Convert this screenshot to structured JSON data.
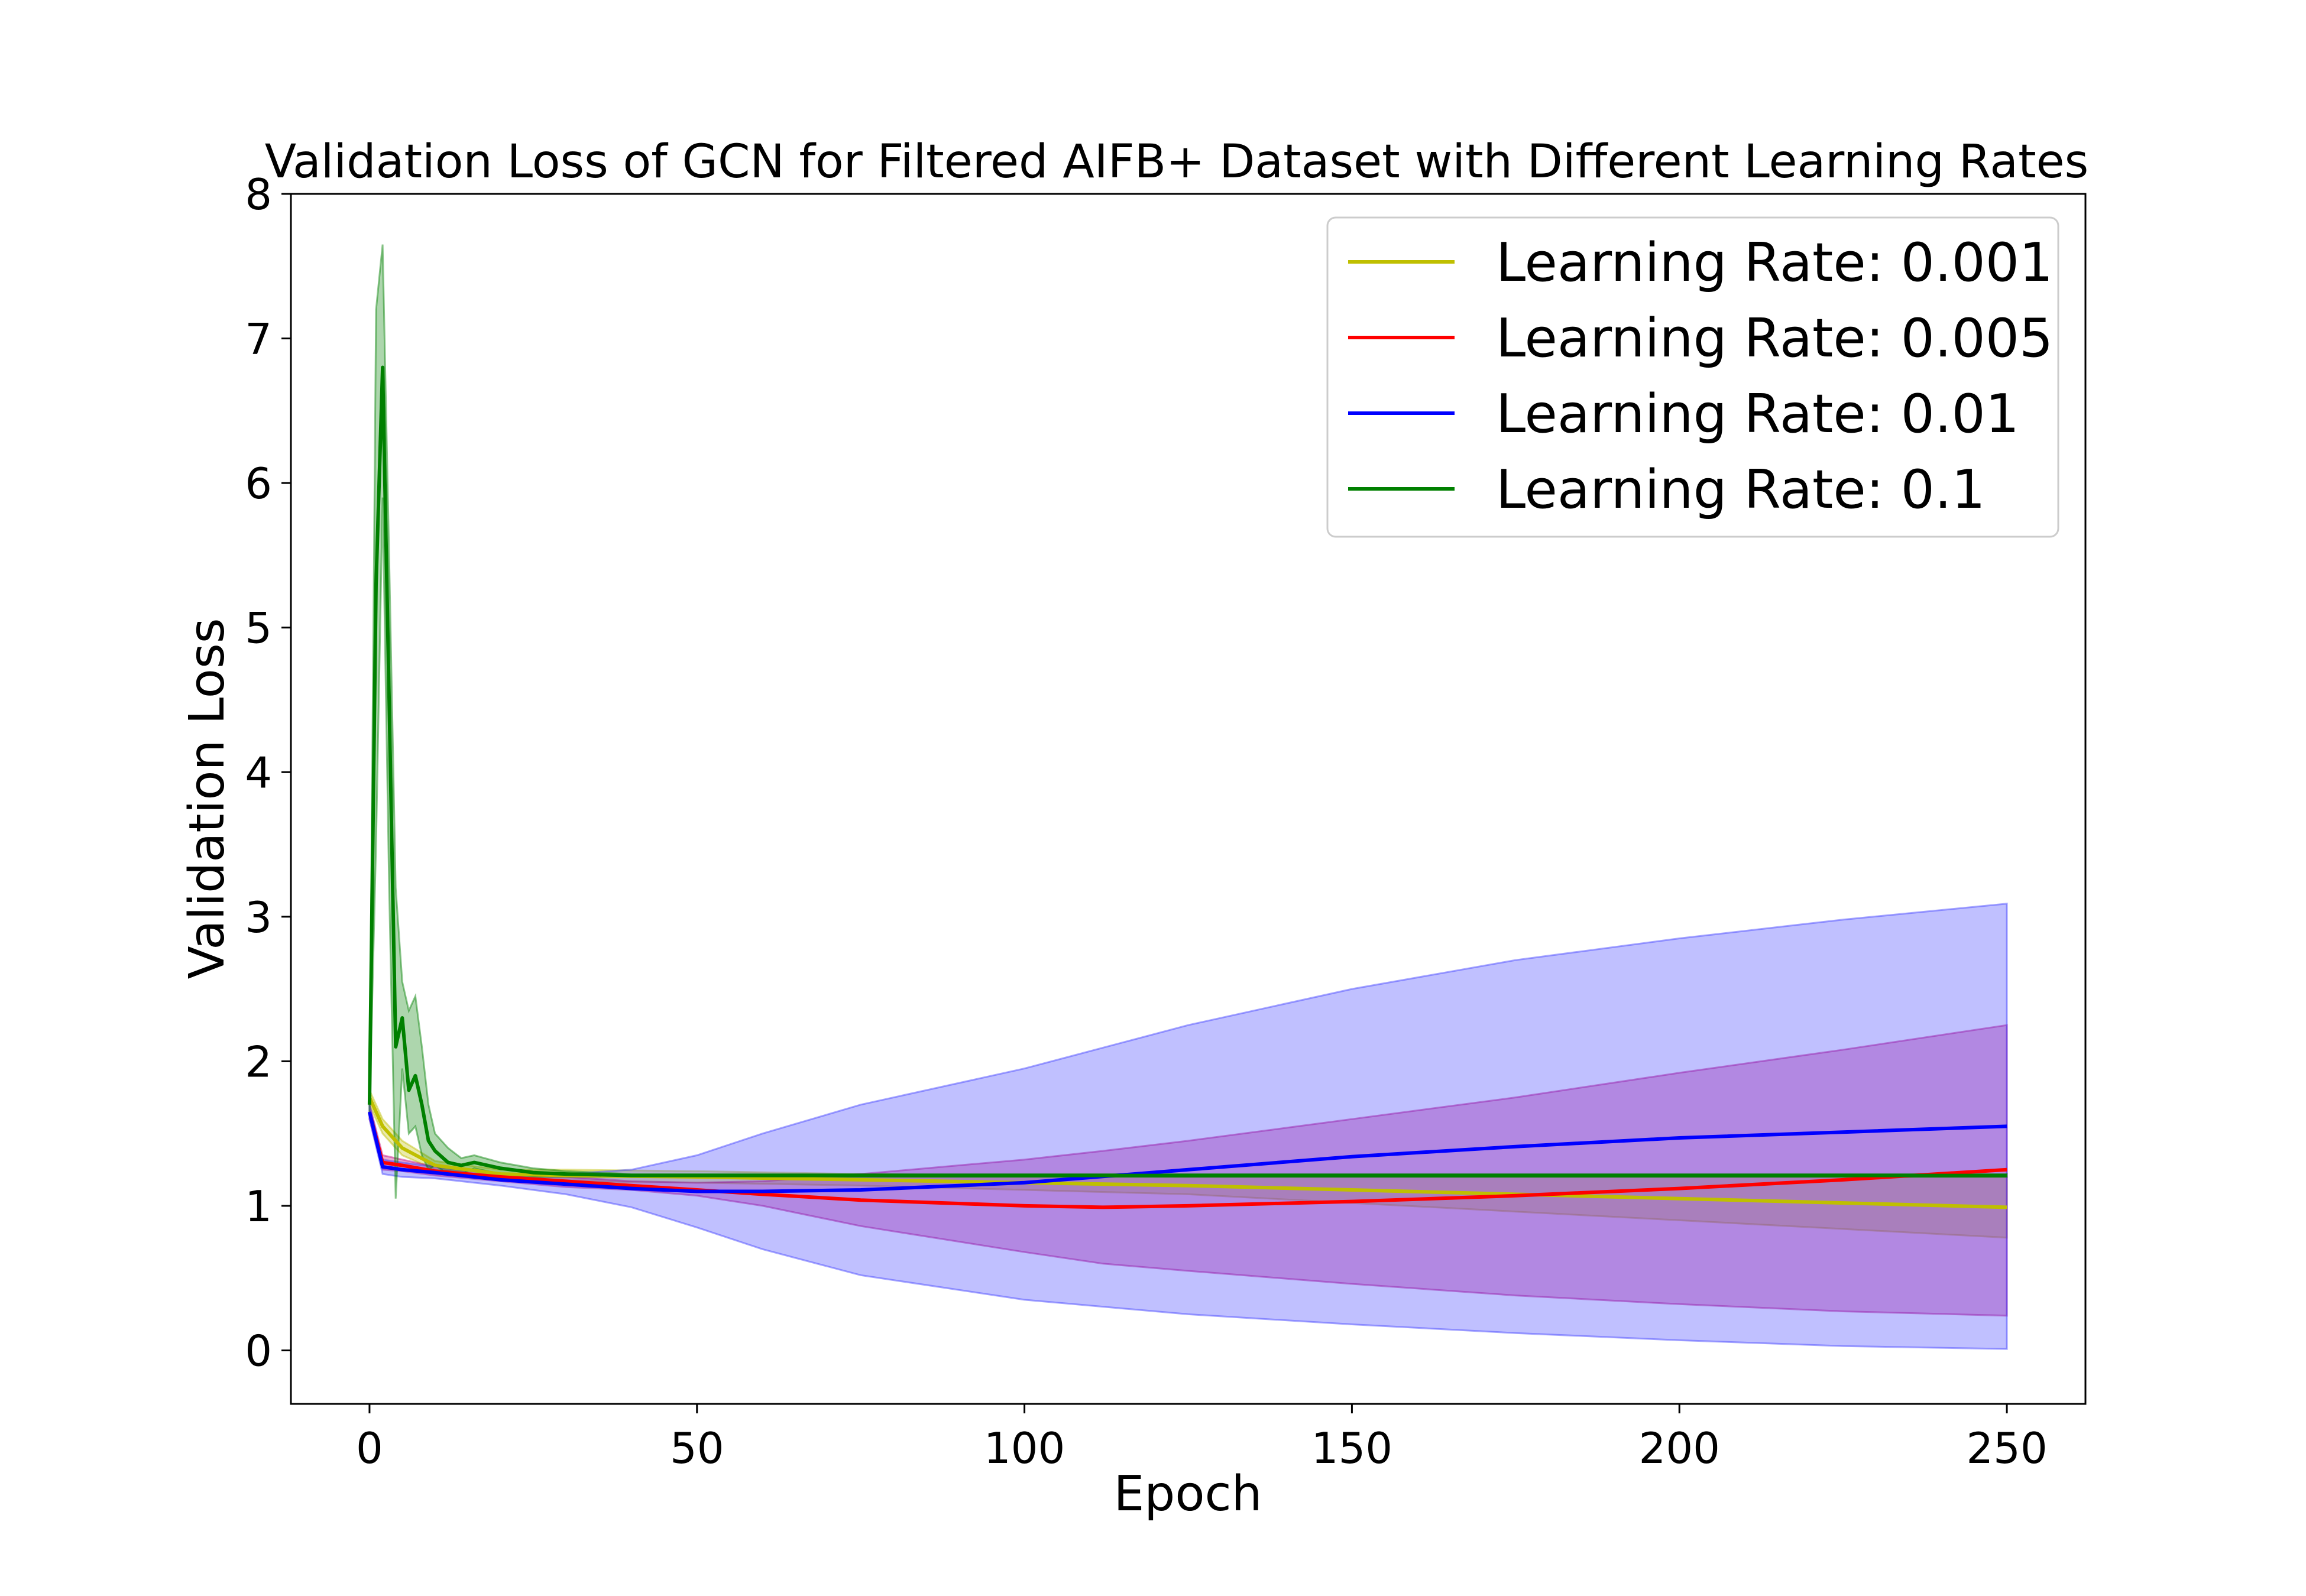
{
  "chart_data": {
    "type": "line",
    "title": "Validation Loss of GCN for Filtered AIFB+ Dataset with Different Learning Rates",
    "xlabel": "Epoch",
    "ylabel": "Validation Loss",
    "xlim": [
      -12,
      262
    ],
    "ylim": [
      -0.37,
      8
    ],
    "xticks": [
      0,
      50,
      100,
      150,
      200,
      250
    ],
    "yticks": [
      0,
      1,
      2,
      3,
      4,
      5,
      6,
      7,
      8
    ],
    "grid": false,
    "legend_position": "top-right",
    "series": [
      {
        "name": "Learning Rate: 0.001",
        "color": "#bfbf00",
        "x": [
          0,
          2,
          5,
          10,
          20,
          30,
          50,
          75,
          100,
          125,
          150,
          175,
          200,
          225,
          250
        ],
        "mean": [
          1.75,
          1.55,
          1.4,
          1.28,
          1.22,
          1.21,
          1.2,
          1.18,
          1.16,
          1.14,
          1.11,
          1.08,
          1.05,
          1.02,
          0.99
        ],
        "upper": [
          1.8,
          1.6,
          1.45,
          1.31,
          1.25,
          1.25,
          1.24,
          1.22,
          1.21,
          1.2,
          1.2,
          1.2,
          1.2,
          1.2,
          1.2
        ],
        "lower": [
          1.7,
          1.5,
          1.35,
          1.25,
          1.19,
          1.17,
          1.16,
          1.14,
          1.11,
          1.08,
          1.02,
          0.96,
          0.9,
          0.84,
          0.78
        ]
      },
      {
        "name": "Learning Rate: 0.005",
        "color": "#ff0000",
        "x": [
          0,
          2,
          5,
          10,
          20,
          30,
          40,
          50,
          60,
          75,
          100,
          112,
          125,
          150,
          175,
          200,
          225,
          250
        ],
        "mean": [
          1.65,
          1.3,
          1.28,
          1.24,
          1.2,
          1.17,
          1.14,
          1.11,
          1.08,
          1.04,
          1.0,
          0.99,
          1.0,
          1.03,
          1.07,
          1.12,
          1.18,
          1.25
        ],
        "upper": [
          1.7,
          1.35,
          1.32,
          1.27,
          1.22,
          1.2,
          1.17,
          1.16,
          1.17,
          1.22,
          1.32,
          1.38,
          1.45,
          1.6,
          1.75,
          1.92,
          2.08,
          2.25
        ],
        "lower": [
          1.6,
          1.25,
          1.24,
          1.21,
          1.17,
          1.13,
          1.11,
          1.07,
          1.0,
          0.86,
          0.68,
          0.6,
          0.55,
          0.46,
          0.38,
          0.32,
          0.27,
          0.24
        ]
      },
      {
        "name": "Learning Rate: 0.01",
        "color": "#0000ff",
        "x": [
          0,
          2,
          5,
          10,
          20,
          30,
          40,
          50,
          60,
          75,
          100,
          125,
          150,
          175,
          200,
          225,
          250
        ],
        "mean": [
          1.65,
          1.27,
          1.25,
          1.23,
          1.18,
          1.15,
          1.12,
          1.1,
          1.1,
          1.11,
          1.16,
          1.25,
          1.34,
          1.41,
          1.47,
          1.51,
          1.55
        ],
        "upper": [
          1.7,
          1.32,
          1.3,
          1.27,
          1.22,
          1.22,
          1.25,
          1.35,
          1.5,
          1.7,
          1.95,
          2.25,
          2.5,
          2.7,
          2.85,
          2.98,
          3.09
        ],
        "lower": [
          1.6,
          1.22,
          1.2,
          1.19,
          1.14,
          1.08,
          0.99,
          0.85,
          0.7,
          0.52,
          0.35,
          0.25,
          0.18,
          0.12,
          0.07,
          0.03,
          0.01
        ]
      },
      {
        "name": "Learning Rate: 0.1",
        "color": "#008000",
        "x": [
          0,
          1,
          2,
          3,
          4,
          5,
          6,
          7,
          8,
          9,
          10,
          12,
          14,
          16,
          20,
          25,
          30,
          40,
          50,
          100,
          150,
          200,
          250
        ],
        "mean": [
          1.7,
          5.3,
          6.8,
          4.5,
          2.1,
          2.3,
          1.8,
          1.9,
          1.7,
          1.45,
          1.38,
          1.3,
          1.28,
          1.3,
          1.26,
          1.23,
          1.22,
          1.21,
          1.21,
          1.21,
          1.21,
          1.21,
          1.21
        ],
        "upper": [
          1.75,
          7.2,
          7.65,
          5.5,
          3.2,
          2.55,
          2.35,
          2.45,
          2.1,
          1.7,
          1.5,
          1.4,
          1.33,
          1.35,
          1.3,
          1.26,
          1.24,
          1.22,
          1.22,
          1.22,
          1.22,
          1.22,
          1.22
        ],
        "lower": [
          1.65,
          3.5,
          5.9,
          3.2,
          1.05,
          1.95,
          1.5,
          1.55,
          1.35,
          1.25,
          1.28,
          1.22,
          1.22,
          1.26,
          1.22,
          1.2,
          1.2,
          1.2,
          1.2,
          1.2,
          1.2,
          1.2,
          1.2
        ]
      }
    ],
    "band_colors": {
      "Learning Rate: 0.001": "#bfbf00",
      "Learning Rate: 0.005": "#c0007a",
      "Learning Rate: 0.01": "#3c3cff",
      "Learning Rate: 0.1": "#008000"
    },
    "band_opacity": 0.32
  }
}
